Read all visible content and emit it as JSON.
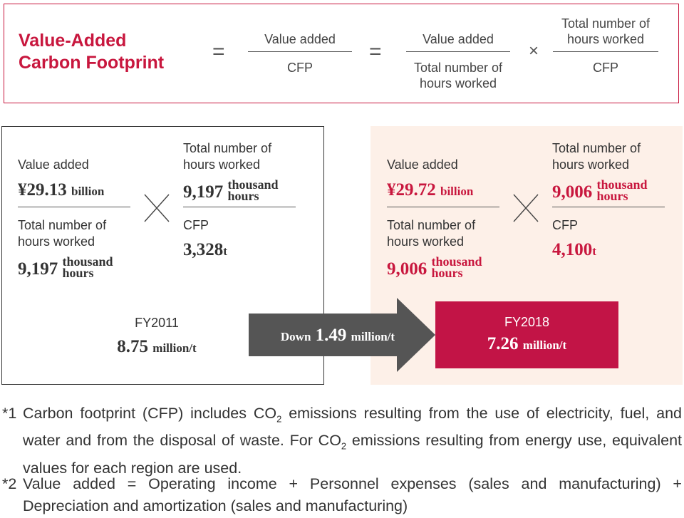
{
  "formula": {
    "title_line1": "Value-Added",
    "title_line2": "Carbon Footprint",
    "eq1": "=",
    "eq2": "=",
    "times": "×",
    "frac1_num": "Value added",
    "frac1_den": "CFP",
    "frac2_num": "Value added",
    "frac2_den_line1": "Total number of",
    "frac2_den_line2": "hours worked",
    "frac3_num_line1": "Total number of",
    "frac3_num_line2": "hours worked",
    "frac3_den": "CFP"
  },
  "fy2011": {
    "value_added_label": "Value added",
    "value_added": "¥29.13",
    "value_added_unit": "billion",
    "hours_label_line1": "Total number of",
    "hours_label_line2": "hours worked",
    "hours_value": "9,197",
    "hours_unit_line1": "thousand",
    "hours_unit_line2": "hours",
    "hours2_label_line1": "Total number of",
    "hours2_label_line2": "hours worked",
    "hours2_value": "9,197",
    "hours2_unit_line1": "thousand",
    "hours2_unit_line2": "hours",
    "cfp_label": "CFP",
    "cfp_value": "3,328",
    "cfp_unit": "t",
    "year": "FY2011",
    "result": "8.75",
    "result_unit": "million/t"
  },
  "arrow": {
    "prefix": "Down",
    "value": "1.49",
    "unit": "million/t"
  },
  "fy2018": {
    "value_added_label": "Value added",
    "value_added": "¥29.72",
    "value_added_unit": "billion",
    "hours_label_line1": "Total number of",
    "hours_label_line2": "hours worked",
    "hours_value": "9,006",
    "hours_unit_line1": "thousand",
    "hours_unit_line2": "hours",
    "hours2_label_line1": "Total number of",
    "hours2_label_line2": "hours worked",
    "hours2_value": "9,006",
    "hours2_unit_line1": "thousand",
    "hours2_unit_line2": "hours",
    "cfp_label": "CFP",
    "cfp_value": "4,100",
    "cfp_unit": "t",
    "year": "FY2018",
    "result": "7.26",
    "result_unit": "million/t"
  },
  "notes": {
    "n1_mark": "*1",
    "n1_a": "Carbon footprint (CFP) includes CO",
    "n1_sub1": "2",
    "n1_b": " emissions resulting from the use of electricity, fuel, and water and from the disposal of waste. For CO",
    "n1_sub2": "2",
    "n1_c": " emissions resulting from energy use, equivalent values for each region are used.",
    "n2_mark": "*2",
    "n2_text": "Value added = Operating income + Personnel expenses (sales and manufacturing) + Depreciation and amortization (sales and manufacturing)"
  },
  "colors": {
    "accent": "#c8173e",
    "result_fill": "#c21446",
    "arrow_fill": "#555555",
    "panel_2018_bg": "#fdf0e8"
  }
}
